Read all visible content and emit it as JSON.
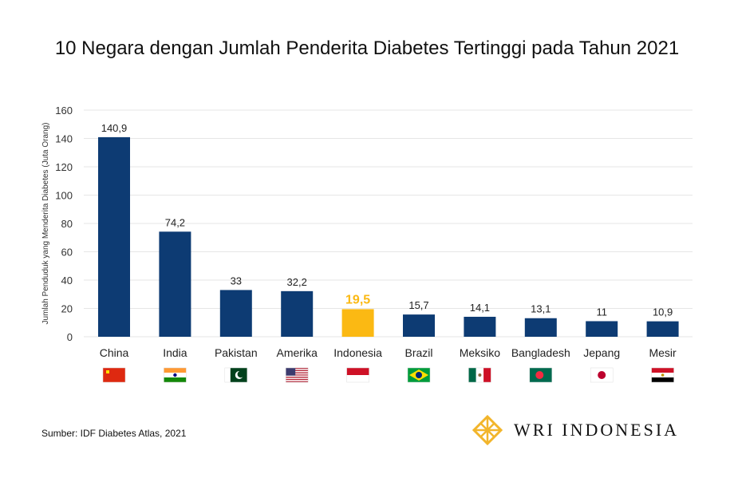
{
  "chart_data": {
    "type": "bar",
    "title": "10 Negara dengan Jumlah Penderita Diabetes Tertinggi pada Tahun 2021",
    "xlabel": "",
    "ylabel": "Jumlah Penduduk yang Menderita Diabetes (Juta Orang)",
    "ylim": [
      0,
      160
    ],
    "yticks": [
      0,
      20,
      40,
      60,
      80,
      100,
      120,
      140,
      160
    ],
    "grid": true,
    "categories": [
      "China",
      "India",
      "Pakistan",
      "Amerika",
      "Indonesia",
      "Brazil",
      "Meksiko",
      "Bangladesh",
      "Jepang",
      "Mesir"
    ],
    "values": [
      140.9,
      74.2,
      33,
      32.2,
      19.5,
      15.7,
      14.1,
      13.1,
      11,
      10.9
    ],
    "labels": [
      "140,9",
      "74,2",
      "33",
      "32,2",
      "19,5",
      "15,7",
      "14,1",
      "13,1",
      "11",
      "10,9"
    ],
    "flags": [
      "china-flag",
      "india-flag",
      "pakistan-flag",
      "usa-flag",
      "indonesia-flag",
      "brazil-flag",
      "mexico-flag",
      "bangladesh-flag",
      "japan-flag",
      "egypt-flag"
    ],
    "highlight": "Indonesia",
    "colors": {
      "bar": "#0d3b73",
      "highlight": "#fbb913",
      "grid": "#e6e6e6"
    }
  },
  "source": "Sumber: IDF Diabetes Atlas, 2021",
  "logo": {
    "text": "WRI INDONESIA",
    "color": "#f2b52b"
  }
}
